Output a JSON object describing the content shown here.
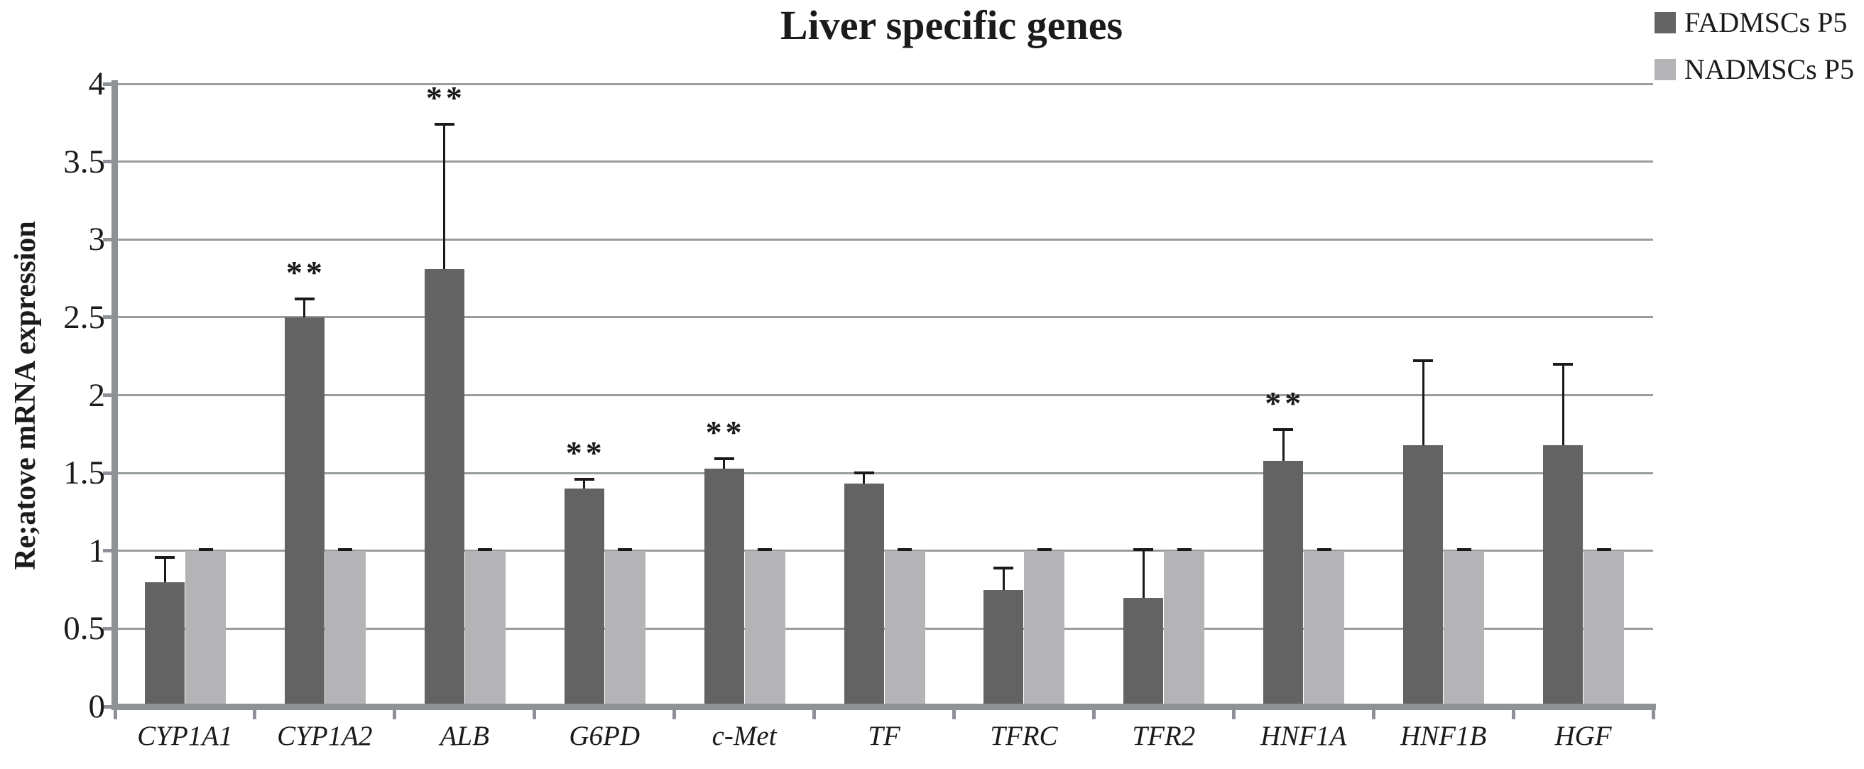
{
  "title": "Liver specific genes",
  "y_axis_title": "Re;atove mRNA expression",
  "legend": {
    "position": "top-right",
    "items": [
      {
        "label": "FADMSCs P5",
        "color": "#636363"
      },
      {
        "label": "NADMSCs P5",
        "color": "#b4b4b6"
      }
    ]
  },
  "chart_data": {
    "type": "bar",
    "title": "Liver specific genes",
    "xlabel": "",
    "ylabel": "Re;atove mRNA expression",
    "categories": [
      "CYP1A1",
      "CYP1A2",
      "ALB",
      "G6PD",
      "c-Met",
      "TF",
      "TFRC",
      "TFR2",
      "HNF1A",
      "HNF1B",
      "HGF"
    ],
    "series": [
      {
        "name": "FADMSCs P5",
        "color": "#636363",
        "values": [
          0.8,
          2.5,
          2.81,
          1.4,
          1.53,
          1.43,
          0.75,
          0.7,
          1.58,
          1.68,
          1.68
        ],
        "error_plus": [
          0.16,
          0.12,
          0.93,
          0.06,
          0.06,
          0.07,
          0.14,
          0.31,
          0.2,
          0.54,
          0.52
        ]
      },
      {
        "name": "NADMSCs P5",
        "color": "#b4b4b6",
        "values": [
          1.0,
          1.0,
          1.0,
          1.0,
          1.0,
          1.0,
          1.0,
          1.0,
          1.0,
          1.0,
          1.0
        ],
        "error_plus": [
          0.01,
          0.01,
          0.01,
          0.01,
          0.01,
          0.01,
          0.01,
          0.01,
          0.01,
          0.01,
          0.01
        ]
      }
    ],
    "significance": {
      "symbol": "**",
      "flags": [
        false,
        true,
        true,
        true,
        true,
        false,
        false,
        false,
        true,
        false,
        false
      ]
    },
    "ylim": [
      0,
      4
    ],
    "ytick_step": 0.5,
    "ytick_labels": [
      "4",
      "3.5",
      "3",
      "2.5",
      "2",
      "1.5",
      "1",
      "0.5",
      "0"
    ],
    "grid": true,
    "legend_position": "top-right",
    "colors": {
      "axis": "#8e9296",
      "gridline": "#989da1",
      "error_bar": "#1a1a1a",
      "text": "#1b1b1b"
    }
  }
}
